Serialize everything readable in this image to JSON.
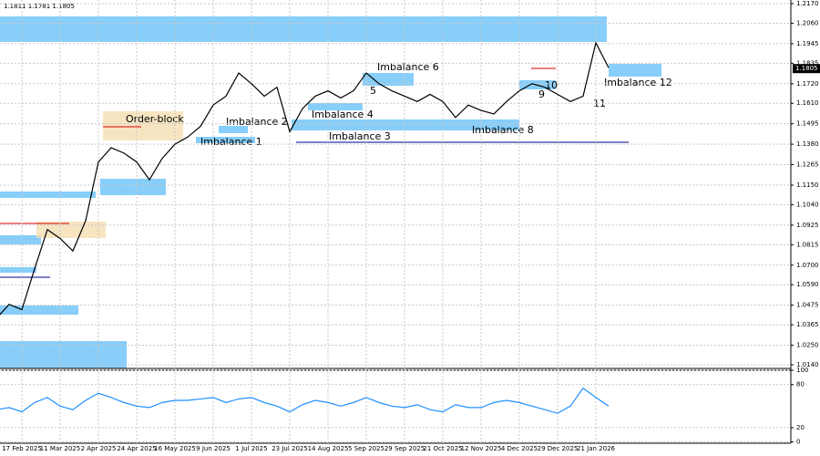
{
  "header": "1.1811 1.1781 1.1805",
  "chart_data": [
    {
      "type": "line",
      "color": "#000000",
      "grid": true,
      "last_price": {
        "value": 1.1805,
        "label": "1.1805"
      },
      "annotations": [
        "Order-block",
        "Imbalance 1",
        "Imbalance 2",
        "Imbalance 3",
        "Imbalance 4",
        "5",
        "Imbalance 6",
        "Imbalance 8",
        "9",
        "10",
        "11",
        "Imbalance 12"
      ],
      "categories": [
        null,
        null,
        "17 Feb 2025",
        null,
        null,
        "11 Mar 2025",
        null,
        null,
        "2 Apr 2025",
        null,
        null,
        "24 Apr 2025",
        null,
        null,
        "16 May 2025",
        null,
        null,
        "9 Jun 2025",
        null,
        null,
        "1 Jul 2025",
        null,
        null,
        "23 Jul 2025",
        null,
        null,
        "14 Aug 2025",
        null,
        null,
        "5 Sep 2025",
        null,
        null,
        "29 Sep 2025",
        null,
        null,
        "21 Oct 2025",
        null,
        null,
        "12 Nov 2025",
        null,
        null,
        "4 Dec 2025",
        null,
        null,
        "29 Dec 2025",
        null,
        null,
        "21 Jan 2026",
        null
      ],
      "values": [
        1.04,
        1.048,
        1.045,
        1.068,
        1.09,
        1.085,
        1.078,
        1.095,
        1.128,
        1.136,
        1.133,
        1.128,
        1.118,
        1.13,
        1.138,
        1.142,
        1.148,
        1.16,
        1.165,
        1.178,
        1.172,
        1.165,
        1.17,
        1.145,
        1.158,
        1.165,
        1.168,
        1.164,
        1.168,
        1.178,
        1.172,
        1.168,
        1.165,
        1.162,
        1.166,
        1.162,
        1.153,
        1.16,
        1.157,
        1.155,
        1.162,
        1.168,
        1.172,
        1.17,
        1.166,
        1.162,
        1.165,
        1.195,
        1.181
      ],
      "ylim": [
        1.014,
        1.217
      ],
      "yticks": [
        {
          "value": 1.217,
          "label": "1.2170"
        },
        {
          "value": 1.206,
          "label": "1.2060"
        },
        {
          "value": 1.1945,
          "label": "1.1945"
        },
        {
          "value": 1.1835,
          "label": "1.1835"
        },
        {
          "value": 1.172,
          "label": "1.1720"
        },
        {
          "value": 1.161,
          "label": "1.1610"
        },
        {
          "value": 1.1495,
          "label": "1.1495"
        },
        {
          "value": 1.138,
          "label": "1.1380"
        },
        {
          "value": 1.1265,
          "label": "1.1265"
        },
        {
          "value": 1.115,
          "label": "1.1150"
        },
        {
          "value": 1.104,
          "label": "1.1040"
        },
        {
          "value": 1.0925,
          "label": "1.0925"
        },
        {
          "value": 1.0815,
          "label": "1.0815"
        },
        {
          "value": 1.07,
          "label": "1.0700"
        },
        {
          "value": 1.059,
          "label": "1.0590"
        },
        {
          "value": 1.0475,
          "label": "1.0475"
        },
        {
          "value": 1.0365,
          "label": "1.0365"
        },
        {
          "value": 1.025,
          "label": "1.0250"
        },
        {
          "value": 1.014,
          "label": "1.0140"
        }
      ]
    },
    {
      "type": "line",
      "color": "#1e90ff",
      "grid": true,
      "values": [
        45,
        48,
        42,
        55,
        62,
        50,
        45,
        58,
        68,
        62,
        55,
        50,
        48,
        55,
        58,
        58,
        60,
        62,
        55,
        60,
        62,
        55,
        50,
        42,
        52,
        58,
        55,
        50,
        55,
        62,
        55,
        50,
        48,
        52,
        45,
        42,
        52,
        48,
        48,
        55,
        58,
        55,
        50,
        45,
        40,
        50,
        75,
        62,
        50
      ],
      "ylim": [
        0,
        100
      ],
      "yticks": [
        100,
        80,
        20,
        0
      ]
    }
  ]
}
